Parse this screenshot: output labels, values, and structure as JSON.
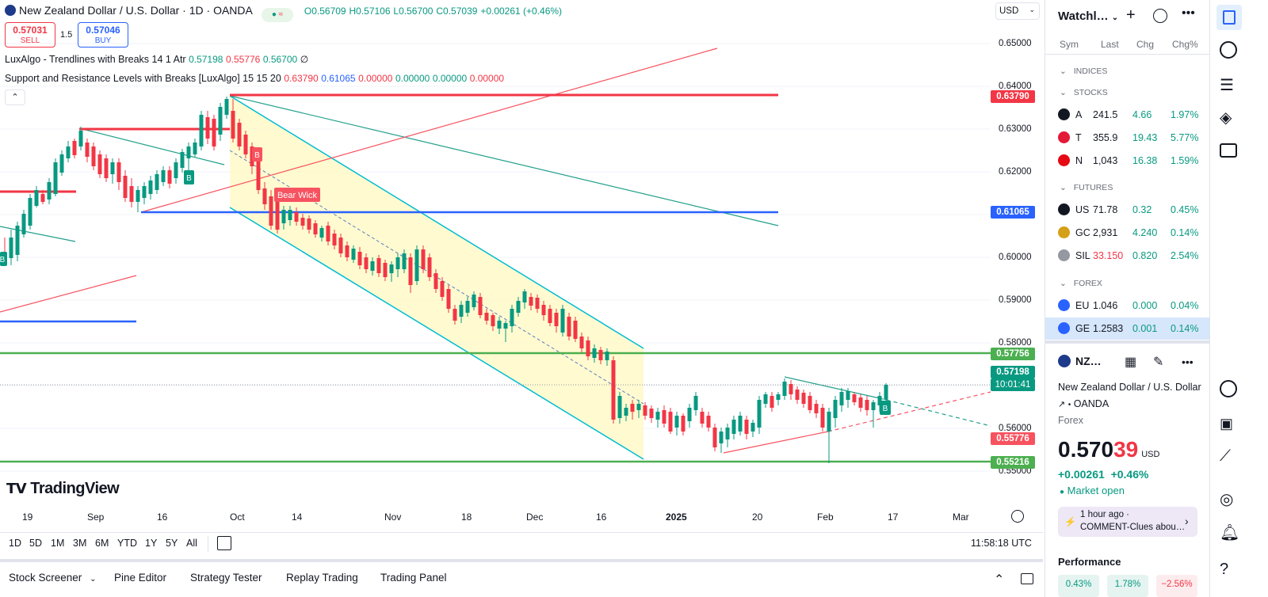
{
  "header": {
    "symbol_title": "New Zealand Dollar / U.S. Dollar · 1D · OANDA",
    "ohlc": {
      "o": "O0.56709",
      "h": "H0.57106",
      "l": "L0.56700",
      "c": "C0.57039",
      "chg": "+0.00261 (+0.46%)"
    },
    "currency": "USD",
    "sell_price": "0.57031",
    "sell_label": "SELL",
    "spread": "1.5",
    "buy_price": "0.57046",
    "buy_label": "BUY"
  },
  "indicators": [
    {
      "name": "LuxAlgo - Trendlines with Breaks 14 1 Atr",
      "v1": "0.57198",
      "v2": "0.55776",
      "v3": "0.56700",
      "v4": "∅"
    },
    {
      "name": "Support and Resistance Levels with Breaks [LuxAlgo] 15 15 20",
      "v1": "0.63790",
      "v2": "0.61065",
      "v3": "0.00000",
      "v4": "0.00000",
      "v5": "0.00000",
      "v6": "0.00000"
    }
  ],
  "price_axis": [
    "0.65000",
    "0.64000",
    "0.63000",
    "0.62000",
    "0.60000",
    "0.59000",
    "0.58000",
    "0.56000",
    "0.55000"
  ],
  "price_tags": [
    {
      "value": "0.63790",
      "color": "#f23645"
    },
    {
      "value": "0.61065",
      "color": "#2962ff"
    },
    {
      "value": "0.57756",
      "color": "#4caf50"
    },
    {
      "value": "0.57198",
      "color": "#089981"
    },
    {
      "value": "10:01:41",
      "color": "#089981"
    },
    {
      "value": "0.55776",
      "color": "#f7525f"
    },
    {
      "value": "0.55216",
      "color": "#4caf50"
    }
  ],
  "time_axis": [
    "19",
    "Sep",
    "16",
    "Oct",
    "14",
    "Nov",
    "18",
    "Dec",
    "16",
    "2025",
    "20",
    "Feb",
    "17",
    "Mar"
  ],
  "chart_labels": {
    "bear_wick": "Bear Wick",
    "b1": "B",
    "b2": "B",
    "b3": "B",
    "b4": "B",
    "watermark": "TradingView"
  },
  "ranges": [
    "1D",
    "5D",
    "1M",
    "3M",
    "6M",
    "YTD",
    "1Y",
    "5Y",
    "All"
  ],
  "clock": "11:58:18 UTC",
  "bottom_tabs": [
    "Stock Screener",
    "Pine Editor",
    "Strategy Tester",
    "Replay Trading",
    "Trading Panel"
  ],
  "watchlist": {
    "title": "Watchl…",
    "cols": [
      "Sym",
      "Last",
      "Chg",
      "Chg%"
    ],
    "sections": {
      "indices": "INDICES",
      "stocks": "STOCKS",
      "futures": "FUTURES",
      "forex": "FOREX"
    },
    "stocks": [
      {
        "sym": "A",
        "last": "241.5",
        "chg": "4.66",
        "pct": "1.97%",
        "color": "#131722"
      },
      {
        "sym": "T",
        "last": "355.9",
        "chg": "19.43",
        "pct": "5.77%",
        "color": "#e31937"
      },
      {
        "sym": "N",
        "last": "1,043",
        "chg": "16.38",
        "pct": "1.59%",
        "color": "#e50914"
      }
    ],
    "futures": [
      {
        "sym": "US",
        "last": "71.78",
        "chg": "0.32",
        "pct": "0.45%",
        "color": "#131722"
      },
      {
        "sym": "GC",
        "last": "2,931",
        "chg": "4.240",
        "pct": "0.14%",
        "color": "#d4a017"
      },
      {
        "sym": "SIL",
        "last": "33.150",
        "chg": "0.820",
        "pct": "2.54%",
        "color": "#9598a1"
      }
    ],
    "forex": [
      {
        "sym": "EU",
        "last": "1.046",
        "chg": "0.000",
        "pct": "0.04%",
        "color": "#2962ff"
      },
      {
        "sym": "GE",
        "last": "1.2583",
        "chg": "0.001",
        "pct": "0.14%",
        "color": "#2962ff"
      }
    ]
  },
  "details": {
    "symbol": "NZ…",
    "name": "New Zealand Dollar / U.S. Dollar",
    "exchange": "OANDA",
    "type": "Forex",
    "price_main": "0.570",
    "price_tail": "39",
    "price_currency": "USD",
    "chg": "+0.00261",
    "chg_pct": "+0.46%",
    "market_status": "Market open",
    "news_time": "1 hour ago ·",
    "news_text": "COMMENT-Clues abou…",
    "performance_label": "Performance",
    "perf": [
      "0.43%",
      "1.78%",
      "−2.56%"
    ]
  }
}
